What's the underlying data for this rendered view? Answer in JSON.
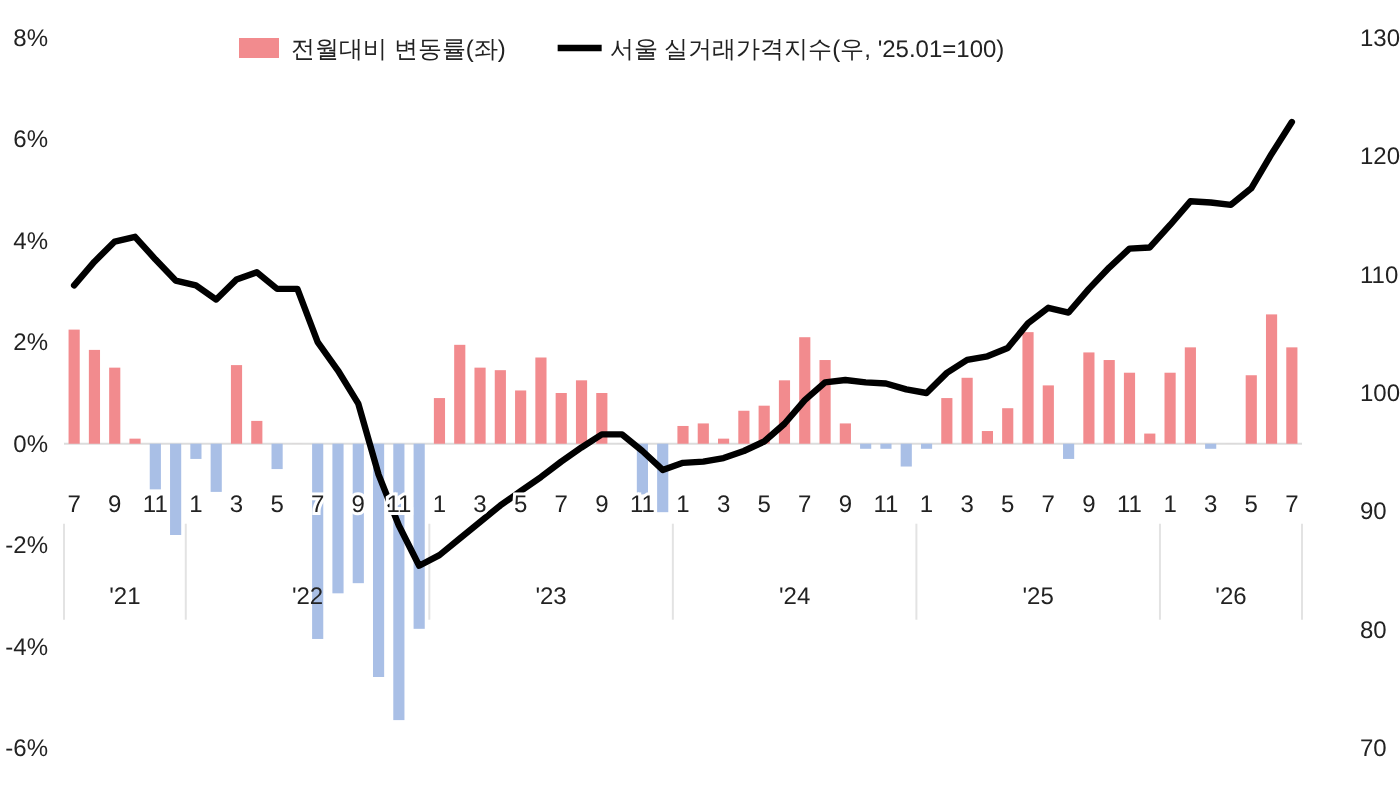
{
  "chart_data": {
    "type": "bar",
    "legend": "top",
    "ylim": [
      -6,
      8
    ],
    "yticks": [
      {
        "value": -6,
        "label": "-6%"
      },
      {
        "value": -4,
        "label": "-4%"
      },
      {
        "value": -2,
        "label": "-2%"
      },
      {
        "value": 0,
        "label": "0%"
      },
      {
        "value": 2,
        "label": "2%"
      },
      {
        "value": 4,
        "label": "4%"
      },
      {
        "value": 6,
        "label": "6%"
      },
      {
        "value": 8,
        "label": "8%"
      }
    ],
    "y2lim": [
      70,
      130
    ],
    "y2ticks": [
      70,
      80,
      90,
      100,
      110,
      120,
      130
    ],
    "xlim": [
      "2021-06-16",
      "2026-07-16"
    ],
    "x": [
      "2021-07",
      "2021-08",
      "2021-09",
      "2021-10",
      "2021-11",
      "2021-12",
      "2022-01",
      "2022-02",
      "2022-03",
      "2022-04",
      "2022-05",
      "2022-06",
      "2022-07",
      "2022-08",
      "2022-09",
      "2022-10",
      "2022-11",
      "2022-12",
      "2023-01",
      "2023-02",
      "2023-03",
      "2023-04",
      "2023-05",
      "2023-06",
      "2023-07",
      "2023-08",
      "2023-09",
      "2023-10",
      "2023-11",
      "2023-12",
      "2024-01",
      "2024-02",
      "2024-03",
      "2024-04",
      "2024-05",
      "2024-06",
      "2024-07",
      "2024-08",
      "2024-09",
      "2024-10",
      "2024-11",
      "2024-12",
      "2025-01",
      "2025-02",
      "2025-03",
      "2025-04",
      "2025-05",
      "2025-06",
      "2025-07",
      "2025-08",
      "2025-09",
      "2025-10",
      "2025-11",
      "2025-12",
      "2026-01",
      "2026-02",
      "2026-03",
      "2026-04",
      "2026-05",
      "2026-06",
      "2026-07"
    ],
    "xticks": [
      {
        "value": "2021-07",
        "label": "7"
      },
      {
        "value": "2021-09",
        "label": "9"
      },
      {
        "value": "2021-11",
        "label": "11"
      },
      {
        "value": "2022-01",
        "label": "1"
      },
      {
        "value": "2022-03",
        "label": "3"
      },
      {
        "value": "2022-05",
        "label": "5"
      },
      {
        "value": "2022-07",
        "label": "7"
      },
      {
        "value": "2022-09",
        "label": "9"
      },
      {
        "value": "2022-11",
        "label": "11"
      },
      {
        "value": "2023-01",
        "label": "1"
      },
      {
        "value": "2023-03",
        "label": "3"
      },
      {
        "value": "2023-05",
        "label": "5"
      },
      {
        "value": "2023-07",
        "label": "7"
      },
      {
        "value": "2023-09",
        "label": "9"
      },
      {
        "value": "2023-11",
        "label": "11"
      },
      {
        "value": "2024-01",
        "label": "1"
      },
      {
        "value": "2024-03",
        "label": "3"
      },
      {
        "value": "2024-05",
        "label": "5"
      },
      {
        "value": "2024-07",
        "label": "7"
      },
      {
        "value": "2024-09",
        "label": "9"
      },
      {
        "value": "2024-11",
        "label": "11"
      },
      {
        "value": "2025-01",
        "label": "1"
      },
      {
        "value": "2025-03",
        "label": "3"
      },
      {
        "value": "2025-05",
        "label": "5"
      },
      {
        "value": "2025-07",
        "label": "7"
      },
      {
        "value": "2025-09",
        "label": "9"
      },
      {
        "value": "2025-11",
        "label": "11"
      },
      {
        "value": "2026-01",
        "label": "1"
      },
      {
        "value": "2026-03",
        "label": "3"
      },
      {
        "value": "2026-05",
        "label": "5"
      },
      {
        "value": "2026-07",
        "label": "7"
      }
    ],
    "annotations": [
      "'21",
      "'22",
      "'23",
      "'24",
      "'25",
      "'26"
    ],
    "series": [
      {
        "name": "전월대비 변동률(좌)",
        "color": "#f28b8e",
        "values": [
          2.25,
          1.85,
          1.5,
          0.1,
          -0.9,
          -1.8,
          -0.3,
          -0.95,
          1.55,
          0.45,
          -0.5,
          0,
          -3.85,
          -2.95,
          -2.75,
          -4.6,
          -5.45,
          -3.65,
          0.9,
          1.95,
          1.5,
          1.45,
          1.05,
          1.7,
          1.0,
          1.25,
          1.0,
          0,
          -1.0,
          -1.35,
          0.35,
          0.4,
          0.1,
          0.65,
          0.75,
          1.25,
          2.1,
          1.65,
          0.4,
          -0.1,
          -0.1,
          -0.45,
          -0.1,
          0.9,
          1.3,
          0.25,
          0.7,
          2.2,
          1.15,
          -0.3,
          1.8,
          1.65,
          1.4,
          0.2,
          1.4,
          1.9,
          -0.1,
          0,
          1.35,
          2.55,
          1.9
        ],
        "colors": [
          "#f28b8e",
          "#f28b8e",
          "#f28b8e",
          "#f28b8e",
          "#a9bfe6",
          "#a9bfe6",
          "#a9bfe6",
          "#a9bfe6",
          "#f28b8e",
          "#f28b8e",
          "#a9bfe6",
          "#f28b8e",
          "#a9bfe6",
          "#a9bfe6",
          "#a9bfe6",
          "#a9bfe6",
          "#a9bfe6",
          "#a9bfe6",
          "#f28b8e",
          "#f28b8e",
          "#f28b8e",
          "#f28b8e",
          "#f28b8e",
          "#f28b8e",
          "#f28b8e",
          "#f28b8e",
          "#f28b8e",
          "#f28b8e",
          "#a9bfe6",
          "#a9bfe6",
          "#f28b8e",
          "#f28b8e",
          "#f28b8e",
          "#f28b8e",
          "#f28b8e",
          "#f28b8e",
          "#f28b8e",
          "#f28b8e",
          "#f28b8e",
          "#a9bfe6",
          "#a9bfe6",
          "#a9bfe6",
          "#a9bfe6",
          "#f28b8e",
          "#f28b8e",
          "#f28b8e",
          "#f28b8e",
          "#f28b8e",
          "#f28b8e",
          "#a9bfe6",
          "#f28b8e",
          "#f28b8e",
          "#f28b8e",
          "#f28b8e",
          "#f28b8e",
          "#f28b8e",
          "#a9bfe6",
          "#f28b8e",
          "#f28b8e",
          "#f28b8e",
          "#f28b8e"
        ]
      },
      {
        "name": "서울 실거래가격지수(우, '25.01=100)",
        "type": "line",
        "axis": "y2",
        "color": "#000000",
        "values": [
          109.1,
          111.1,
          112.8,
          113.2,
          111.3,
          109.5,
          109.1,
          107.9,
          109.6,
          110.2,
          108.8,
          108.8,
          104.3,
          101.9,
          99.1,
          93.1,
          88.8,
          85.4,
          86.3,
          87.7,
          89.1,
          90.5,
          91.7,
          92.9,
          94.2,
          95.4,
          96.5,
          96.5,
          95.1,
          93.5,
          94.1,
          94.2,
          94.5,
          95.1,
          95.9,
          97.4,
          99.4,
          100.9,
          101.1,
          100.9,
          100.8,
          100.3,
          100,
          101.7,
          102.8,
          103.1,
          103.8,
          105.9,
          107.2,
          106.8,
          108.8,
          110.6,
          112.2,
          112.3,
          114.2,
          116.2,
          116.1,
          115.9,
          117.3,
          120.2,
          122.9
        ]
      }
    ]
  }
}
